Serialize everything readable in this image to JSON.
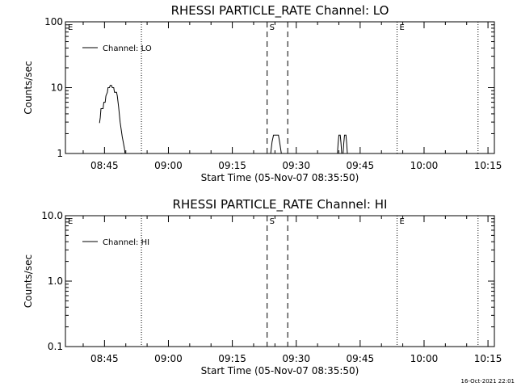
{
  "footer": {
    "timestamp": "16-Oct-2021 22:01"
  },
  "chart_data": [
    {
      "type": "line",
      "title": "RHESSI PARTICLE_RATE Channel: LO",
      "xlabel": "Start Time (05-Nov-07 08:35:50)",
      "ylabel": "Counts/sec",
      "yscale": "log",
      "ylim": [
        1,
        100
      ],
      "yticks": [
        {
          "value": 1,
          "label": "1"
        },
        {
          "value": 10,
          "label": "10"
        },
        {
          "value": 100,
          "label": "100"
        }
      ],
      "xlim": [
        "08:35:50",
        "10:16:30"
      ],
      "xticks": [
        "08:45",
        "09:00",
        "09:15",
        "09:30",
        "09:45",
        "10:00",
        "10:15"
      ],
      "grid": false,
      "legend": {
        "position": "top-left",
        "entries": [
          "Channel: LO"
        ]
      },
      "markers": [
        {
          "time": "08:35:50",
          "label": "E",
          "style": "none"
        },
        {
          "time": "08:53:40",
          "label": "",
          "style": "dotted"
        },
        {
          "time": "09:23:10",
          "label": "S",
          "style": "dashed"
        },
        {
          "time": "09:28:00",
          "label": "",
          "style": "dashed"
        },
        {
          "time": "09:53:40",
          "label": "E",
          "style": "dotted"
        },
        {
          "time": "10:12:40",
          "label": "",
          "style": "dotted"
        }
      ],
      "series": [
        {
          "name": "Channel: LO",
          "segments": [
            [
              [
                "08:43:50",
                2.9
              ],
              [
                "08:44:00",
                3.5
              ],
              [
                "08:44:10",
                4.8
              ],
              [
                "08:44:40",
                4.8
              ],
              [
                "08:44:50",
                6.0
              ],
              [
                "08:45:10",
                6.0
              ],
              [
                "08:45:20",
                7.5
              ],
              [
                "08:45:40",
                8.5
              ],
              [
                "08:45:50",
                10.0
              ],
              [
                "08:46:10",
                10.0
              ],
              [
                "08:46:20",
                10.8
              ],
              [
                "08:46:40",
                10.8
              ],
              [
                "08:46:50",
                10.0
              ],
              [
                "08:47:10",
                10.0
              ],
              [
                "08:47:20",
                8.5
              ],
              [
                "08:47:50",
                8.5
              ],
              [
                "08:48:00",
                7.5
              ],
              [
                "08:48:20",
                5.0
              ],
              [
                "08:48:40",
                3.0
              ],
              [
                "08:49:10",
                1.8
              ],
              [
                "08:49:40",
                1.2
              ],
              [
                "08:49:50",
                1.0
              ]
            ],
            [
              [
                "09:24:00",
                1.0
              ],
              [
                "09:24:20",
                1.5
              ],
              [
                "09:24:40",
                1.9
              ],
              [
                "09:25:50",
                1.9
              ],
              [
                "09:26:10",
                1.4
              ],
              [
                "09:26:30",
                1.0
              ]
            ],
            [
              [
                "09:39:40",
                1.0
              ],
              [
                "09:39:50",
                1.45
              ],
              [
                "09:40:00",
                1.9
              ],
              [
                "09:40:20",
                1.9
              ],
              [
                "09:40:30",
                1.45
              ],
              [
                "09:40:40",
                1.0
              ]
            ],
            [
              [
                "09:41:00",
                1.0
              ],
              [
                "09:41:10",
                1.45
              ],
              [
                "09:41:20",
                1.9
              ],
              [
                "09:41:40",
                1.9
              ],
              [
                "09:41:50",
                1.45
              ],
              [
                "09:42:00",
                1.0
              ]
            ]
          ]
        }
      ]
    },
    {
      "type": "line",
      "title": "RHESSI PARTICLE_RATE Channel: HI",
      "xlabel": "Start Time (05-Nov-07 08:35:50)",
      "ylabel": "Counts/sec",
      "yscale": "log",
      "ylim": [
        0.1,
        10
      ],
      "yticks": [
        {
          "value": 0.1,
          "label": "0.1"
        },
        {
          "value": 1,
          "label": "1.0"
        },
        {
          "value": 10,
          "label": "10.0"
        }
      ],
      "xlim": [
        "08:35:50",
        "10:16:30"
      ],
      "xticks": [
        "08:45",
        "09:00",
        "09:15",
        "09:30",
        "09:45",
        "10:00",
        "10:15"
      ],
      "grid": false,
      "legend": {
        "position": "top-left",
        "entries": [
          "Channel: HI"
        ]
      },
      "markers": [
        {
          "time": "08:35:50",
          "label": "E",
          "style": "none"
        },
        {
          "time": "08:53:40",
          "label": "",
          "style": "dotted"
        },
        {
          "time": "09:23:10",
          "label": "S",
          "style": "dashed"
        },
        {
          "time": "09:28:00",
          "label": "",
          "style": "dashed"
        },
        {
          "time": "09:53:40",
          "label": "E",
          "style": "dotted"
        },
        {
          "time": "10:12:40",
          "label": "",
          "style": "dotted"
        }
      ],
      "series": [
        {
          "name": "Channel: HI",
          "segments": []
        }
      ]
    }
  ]
}
